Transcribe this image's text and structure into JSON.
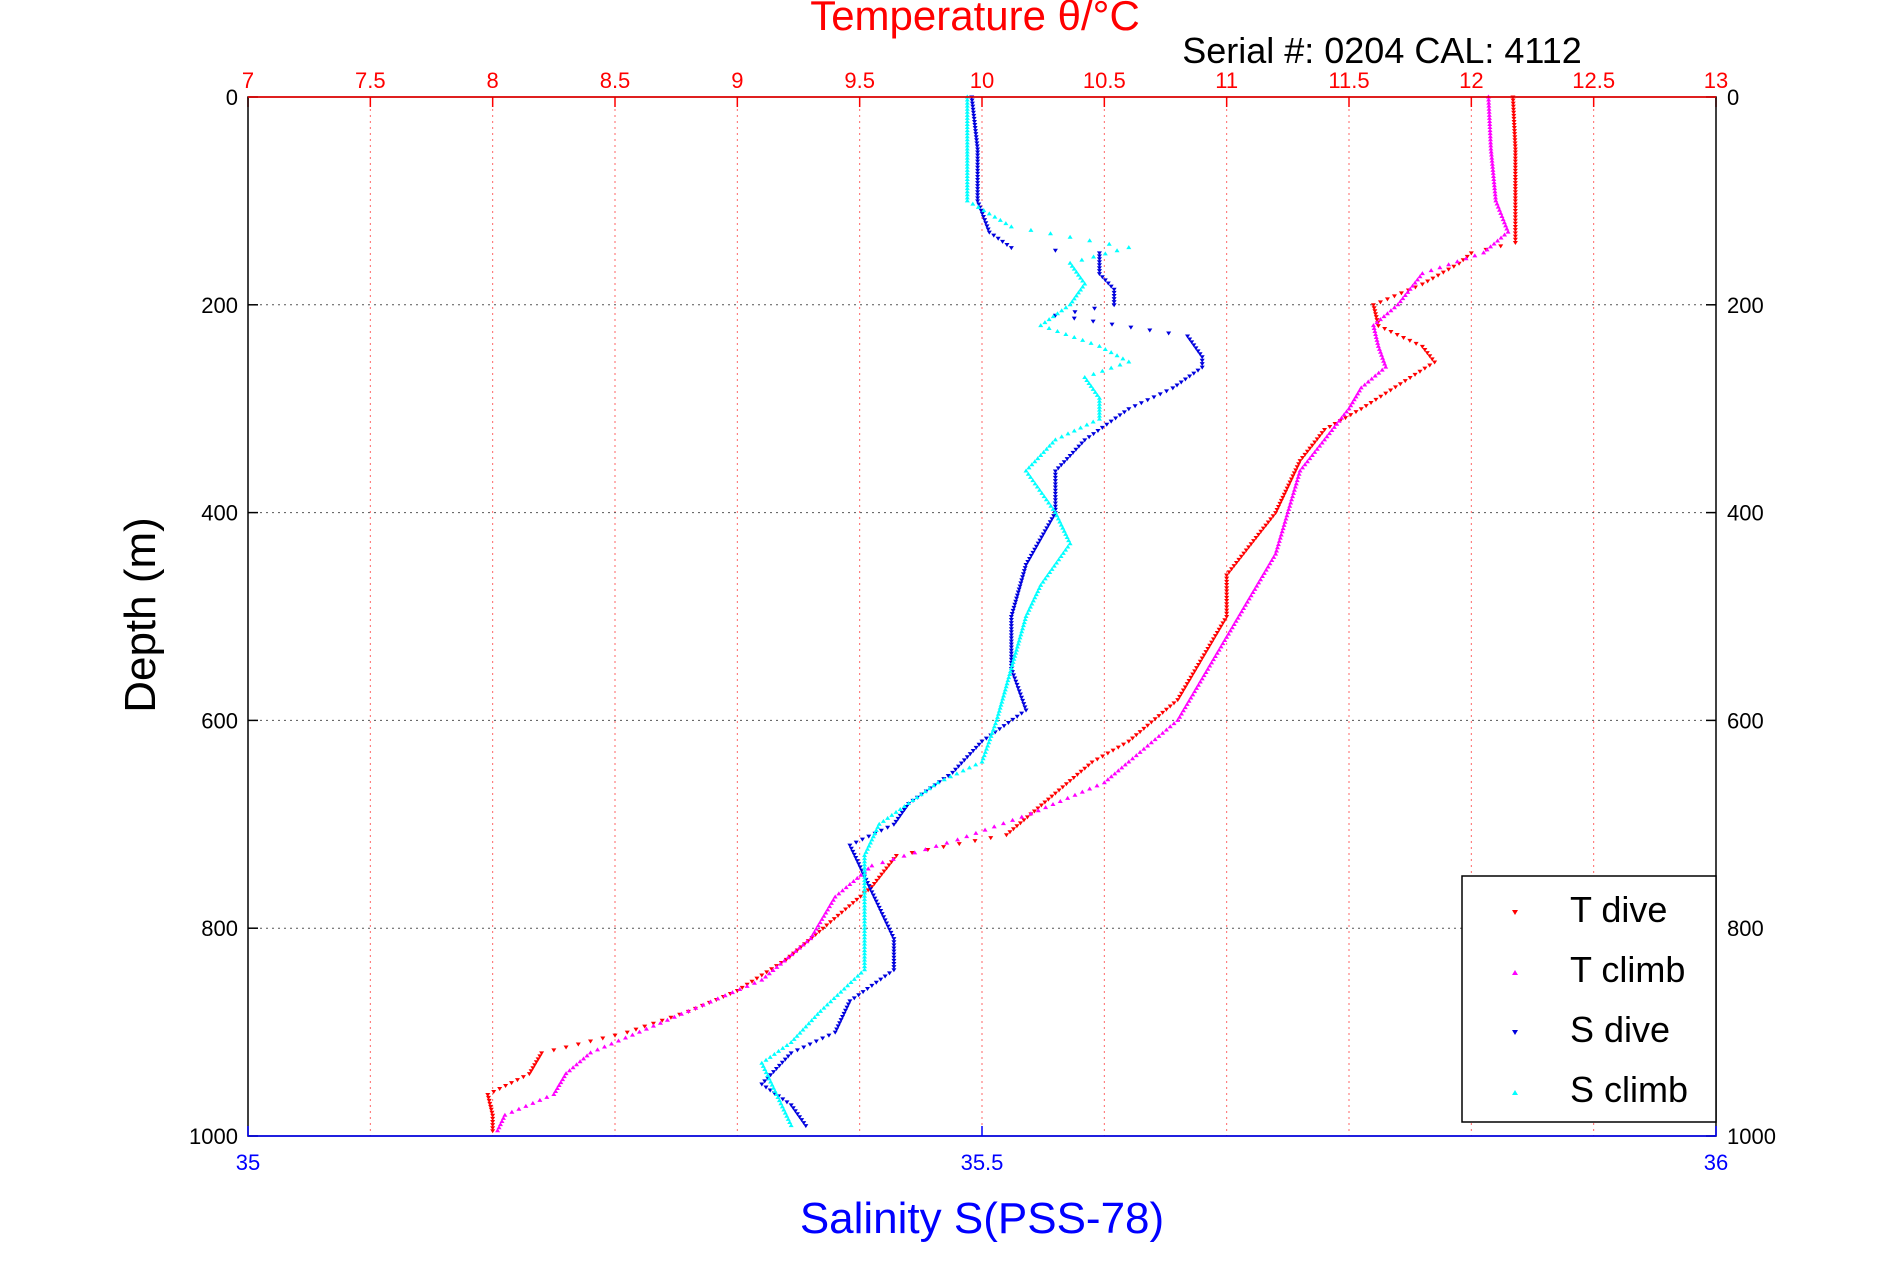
{
  "colors": {
    "temperature_axis": "#ff0000",
    "salinity_axis": "#0000ff",
    "t_dive": "#ff0000",
    "t_climb": "#ff00ff",
    "s_dive": "#0000dd",
    "s_climb": "#00ffff",
    "grid_temp": "#ff6666",
    "grid_depth": "#555555"
  },
  "header": {
    "top_title": "Temperature θ/°C",
    "serial": "Serial #: 0204  CAL: 4112"
  },
  "chart_data": {
    "type": "scatter",
    "title": "Temperature θ/°C",
    "xlabel_top": "Temperature θ/°C",
    "xlabel_bottom": "Salinity S(PSS-78)",
    "ylabel": "Depth (m)",
    "ylim": [
      0,
      1000
    ],
    "y_inverted": true,
    "temperature_axis": {
      "lim": [
        7,
        13
      ],
      "ticks": [
        "7",
        "7.5",
        "8",
        "8.5",
        "9",
        "9.5",
        "10",
        "10.5",
        "11",
        "11.5",
        "12",
        "12.5",
        "13"
      ]
    },
    "salinity_axis": {
      "lim": [
        35,
        36
      ],
      "ticks": [
        "35",
        "35.5",
        "36"
      ]
    },
    "depth_ticks": [
      "0",
      "200",
      "400",
      "600",
      "800",
      "1000"
    ],
    "grid": true,
    "legend_position": "bottom-right",
    "series": [
      {
        "name": "T dive",
        "axis": "temperature",
        "marker": "▾",
        "depth": [
          0,
          50,
          100,
          140,
          150,
          160,
          180,
          200,
          220,
          240,
          255,
          270,
          300,
          320,
          350,
          400,
          430,
          460,
          500,
          540,
          580,
          620,
          640,
          670,
          690,
          710,
          730,
          760,
          800,
          830,
          860,
          880,
          900,
          920,
          940,
          960,
          980,
          995
        ],
        "values": [
          12.17,
          12.18,
          12.18,
          12.18,
          12.0,
          11.95,
          11.8,
          11.6,
          11.62,
          11.8,
          11.85,
          11.75,
          11.55,
          11.4,
          11.3,
          11.2,
          11.1,
          11.0,
          11.0,
          10.9,
          10.8,
          10.6,
          10.45,
          10.3,
          10.2,
          10.1,
          9.65,
          9.55,
          9.35,
          9.2,
          9.0,
          8.8,
          8.55,
          8.2,
          8.15,
          7.98,
          8.0,
          8.0
        ]
      },
      {
        "name": "T climb",
        "axis": "temperature",
        "marker": "▴",
        "depth": [
          0,
          50,
          100,
          130,
          150,
          170,
          200,
          220,
          240,
          260,
          280,
          300,
          330,
          360,
          400,
          440,
          480,
          520,
          560,
          600,
          640,
          660,
          690,
          715,
          740,
          770,
          810,
          850,
          880,
          900,
          920,
          940,
          960,
          980,
          995
        ],
        "values": [
          12.07,
          12.08,
          12.1,
          12.15,
          12.05,
          11.8,
          11.7,
          11.6,
          11.62,
          11.65,
          11.55,
          11.5,
          11.4,
          11.3,
          11.25,
          11.2,
          11.1,
          11.0,
          10.9,
          10.8,
          10.6,
          10.5,
          10.2,
          9.9,
          9.55,
          9.4,
          9.3,
          9.1,
          8.8,
          8.6,
          8.4,
          8.3,
          8.25,
          8.05,
          8.02
        ]
      },
      {
        "name": "S dive",
        "axis": "salinity",
        "marker": "▾",
        "depth": [
          0,
          50,
          100,
          130,
          145,
          150,
          170,
          185,
          200,
          210,
          230,
          250,
          260,
          280,
          300,
          330,
          360,
          400,
          450,
          500,
          550,
          590,
          620,
          650,
          680,
          700,
          720,
          750,
          780,
          810,
          840,
          870,
          900,
          920,
          950,
          970,
          990
        ],
        "values": [
          35.493,
          35.497,
          35.497,
          35.505,
          35.52,
          35.58,
          35.58,
          35.59,
          35.59,
          35.55,
          35.64,
          35.65,
          35.65,
          35.63,
          35.6,
          35.57,
          35.55,
          35.55,
          35.53,
          35.52,
          35.52,
          35.53,
          35.5,
          35.48,
          35.45,
          35.44,
          35.41,
          35.42,
          35.43,
          35.44,
          35.44,
          35.41,
          35.4,
          35.37,
          35.35,
          35.37,
          35.38
        ]
      },
      {
        "name": "S climb",
        "axis": "salinity",
        "marker": "▴",
        "depth": [
          0,
          50,
          100,
          125,
          135,
          145,
          160,
          180,
          200,
          220,
          240,
          255,
          270,
          290,
          310,
          330,
          360,
          400,
          430,
          470,
          500,
          550,
          600,
          640,
          660,
          680,
          700,
          730,
          760,
          800,
          840,
          880,
          910,
          930,
          960,
          990
        ],
        "values": [
          35.49,
          35.49,
          35.49,
          35.52,
          35.56,
          35.6,
          35.56,
          35.57,
          35.56,
          35.54,
          35.58,
          35.6,
          35.57,
          35.58,
          35.58,
          35.55,
          35.53,
          35.55,
          35.56,
          35.54,
          35.53,
          35.52,
          35.51,
          35.5,
          35.47,
          35.45,
          35.43,
          35.42,
          35.42,
          35.42,
          35.42,
          35.39,
          35.37,
          35.35,
          35.36,
          35.37
        ]
      }
    ]
  }
}
